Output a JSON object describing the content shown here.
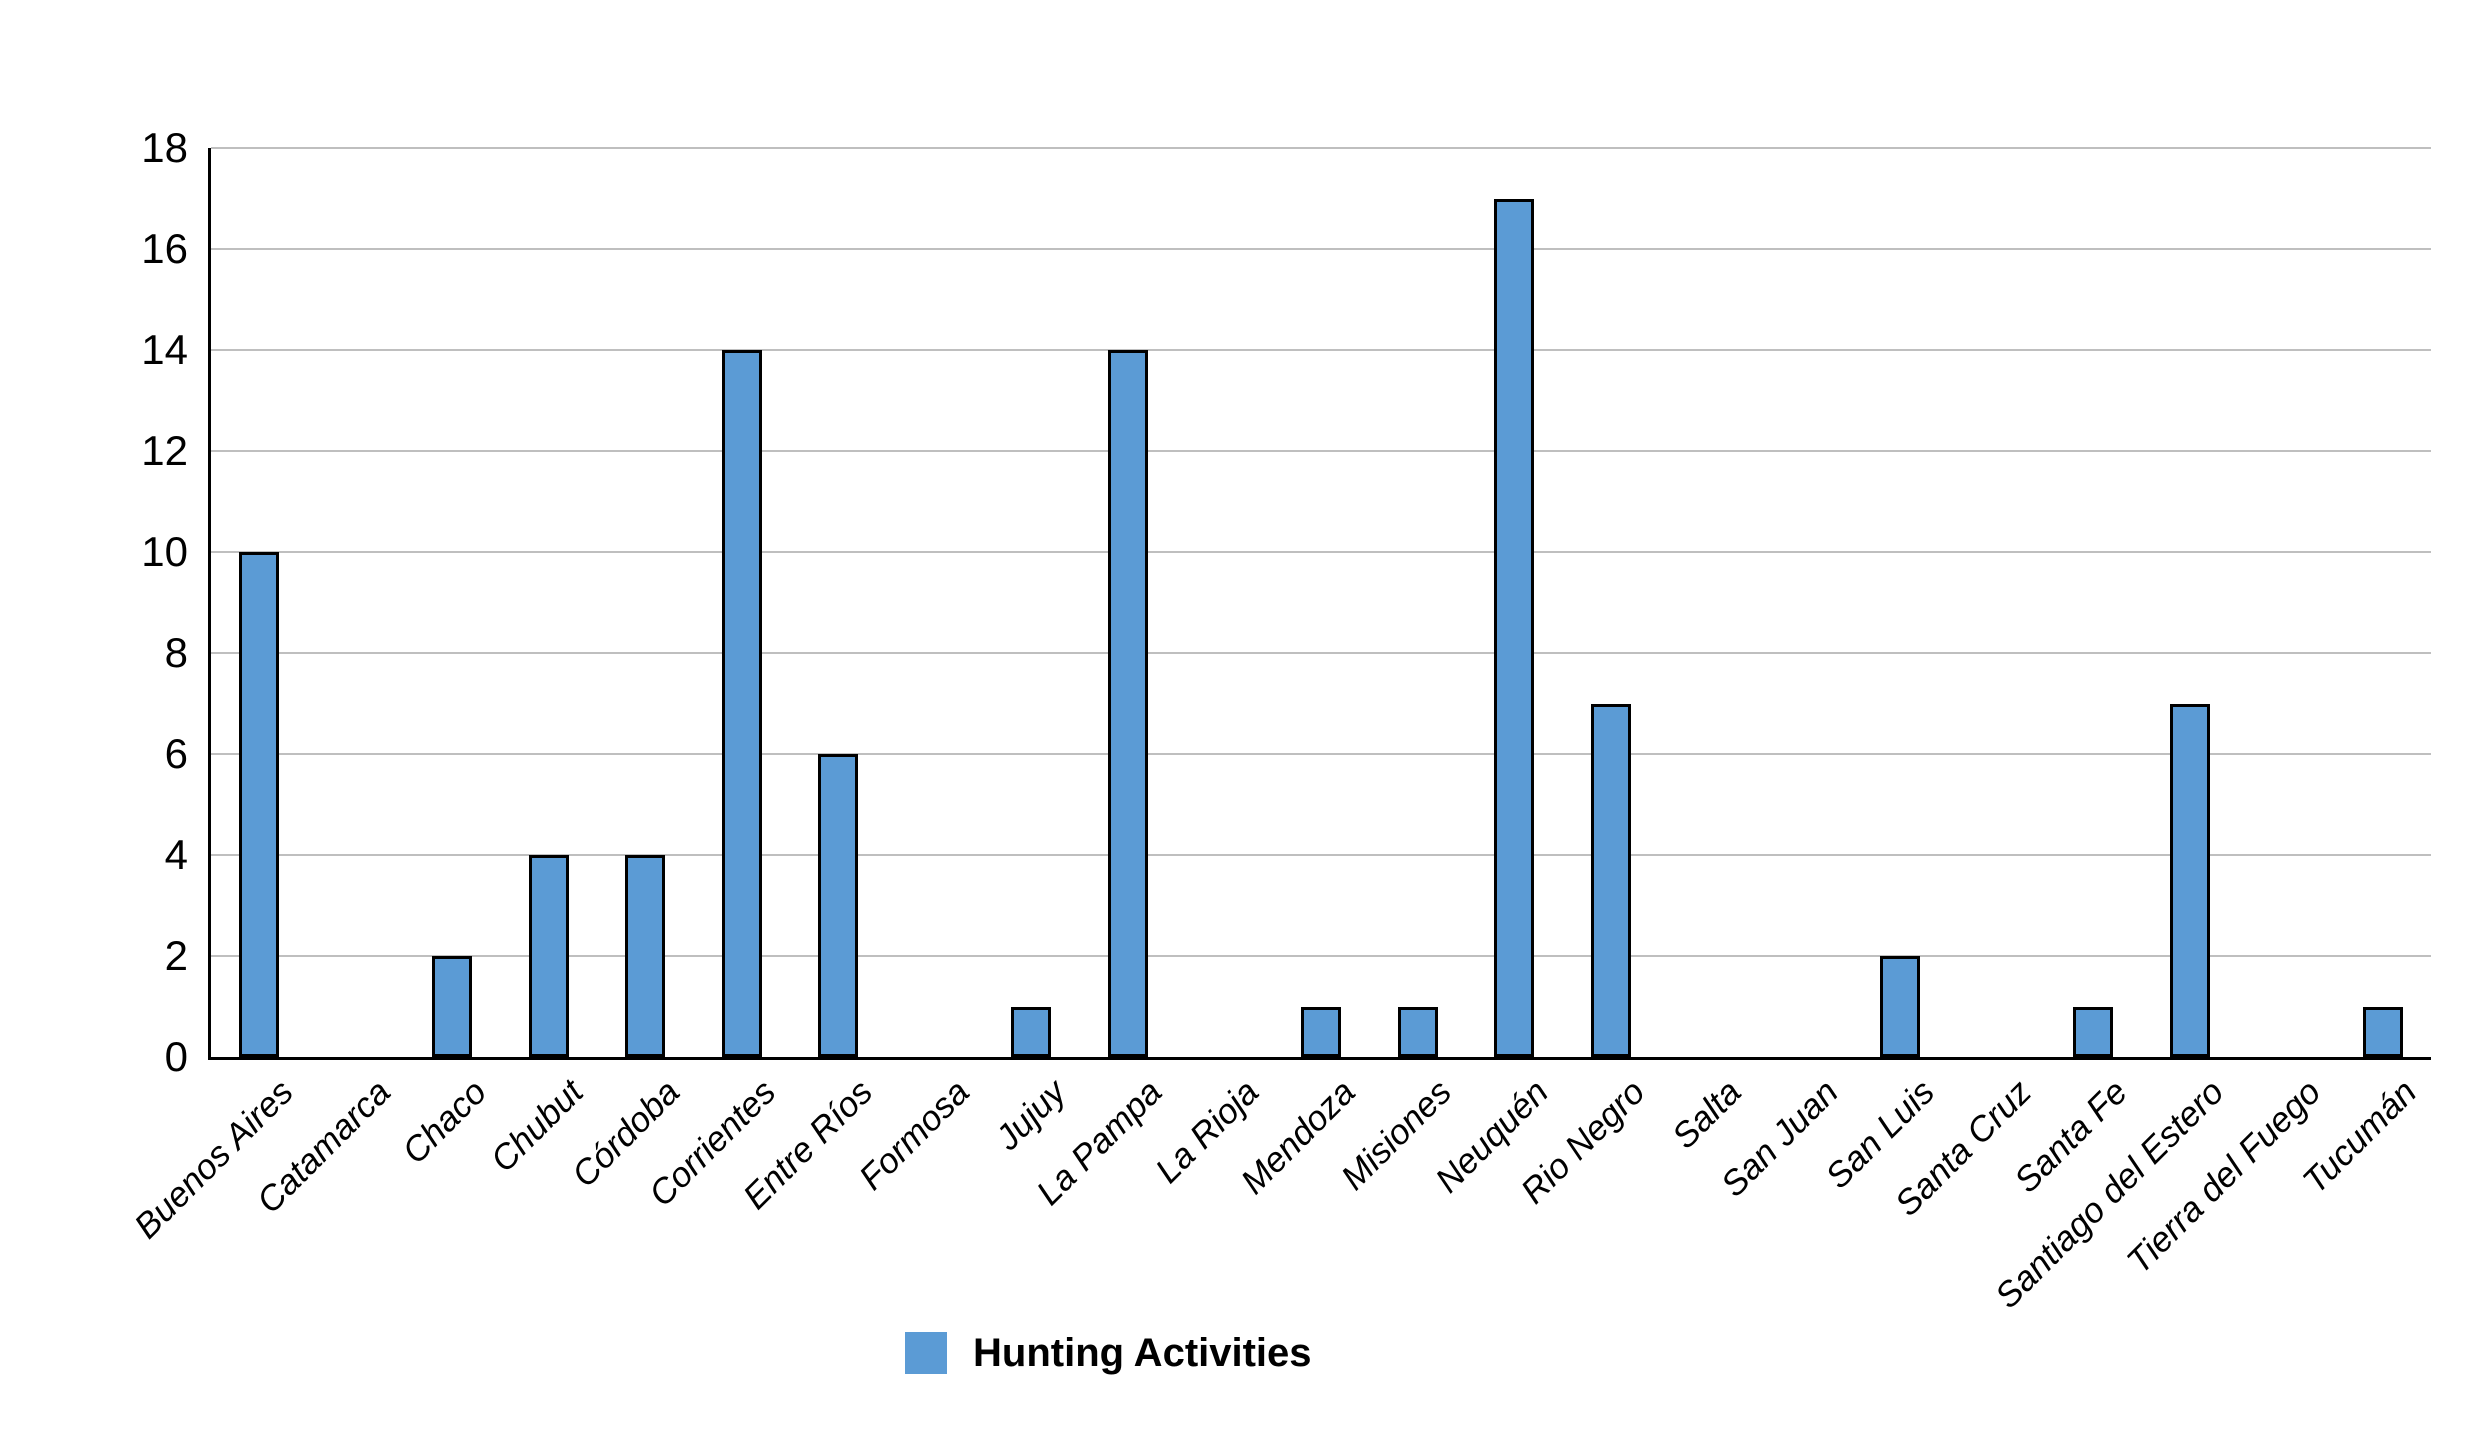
{
  "chart_data": {
    "type": "bar",
    "title": "",
    "series_name": "Hunting Activities",
    "categories": [
      "Buenos Aires",
      "Catamarca",
      "Chaco",
      "Chubut",
      "Córdoba",
      "Corrientes",
      "Entre Ríos",
      "Formosa",
      "Jujuy",
      "La Pampa",
      "La Rioja",
      "Mendoza",
      "Misiones",
      "Neuquén",
      "Rio Negro",
      "Salta",
      "San Juan",
      "San Luis",
      "Santa Cruz",
      "Santa Fe",
      "Santiago del Estero",
      "Tierra del Fuego",
      "Tucumán"
    ],
    "values": [
      10,
      0,
      2,
      4,
      4,
      14,
      6,
      0,
      1,
      14,
      0,
      1,
      1,
      17,
      7,
      0,
      0,
      2,
      0,
      1,
      7,
      0,
      1
    ],
    "xlabel": "",
    "ylabel": "",
    "ylim": [
      0,
      18
    ],
    "yticks": [
      0,
      2,
      4,
      6,
      8,
      10,
      12,
      14,
      16,
      18
    ],
    "grid": "horizontal",
    "legend_position": "bottom-center",
    "colors": {
      "bar_fill": "#5B9BD5",
      "bar_border": "#000000",
      "gridline": "#BFBFBF",
      "axis": "#000000",
      "background": "#FFFFFF",
      "text": "#000000"
    }
  }
}
